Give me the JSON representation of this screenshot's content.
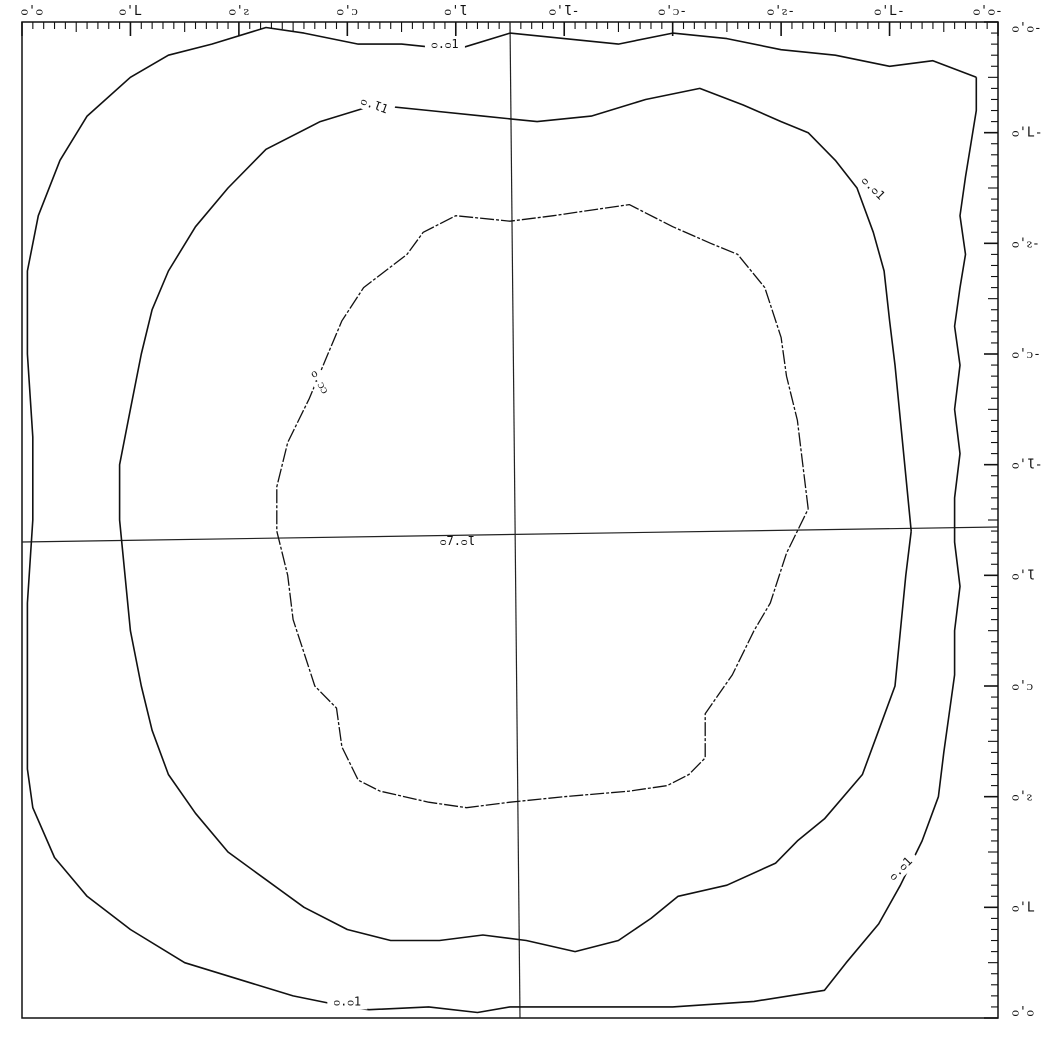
{
  "chart_data": {
    "type": "contour",
    "orientation": "rotated 180 degrees (printed upside-down)",
    "x_axis": {
      "position": "top",
      "range": [
        9.0,
        -9.0
      ],
      "tick_labels": [
        "9.0",
        "7.0",
        "5.0",
        "3.0",
        "1.0",
        "-1.0",
        "-3.0",
        "-5.0",
        "-7.0",
        "-9.0"
      ]
    },
    "y_axis": {
      "position": "right",
      "range": [
        -9.0,
        9.0
      ],
      "tick_labels": [
        "-9.0",
        "-7.0",
        "-5.0",
        "-3.0",
        "-1.0",
        "1.0",
        "3.0",
        "5.0",
        "7.0",
        "9.0"
      ]
    },
    "crosshair": {
      "x": 0.0,
      "y": 0.0
    },
    "center_label": "18.70",
    "contours": [
      {
        "level": 16.0,
        "labels": [
          "16.0",
          "16.0",
          "16.0",
          "16.0"
        ],
        "points": [
          [
            -8.6,
            -8.0
          ],
          [
            -8.6,
            -7.4
          ],
          [
            -8.5,
            -6.8
          ],
          [
            -8.4,
            -6.2
          ],
          [
            -8.3,
            -5.5
          ],
          [
            -8.4,
            -4.8
          ],
          [
            -8.3,
            -4.2
          ],
          [
            -8.2,
            -3.5
          ],
          [
            -8.3,
            -2.8
          ],
          [
            -8.2,
            -2.0
          ],
          [
            -8.3,
            -1.2
          ],
          [
            -8.2,
            -0.4
          ],
          [
            -8.2,
            0.4
          ],
          [
            -8.3,
            1.2
          ],
          [
            -8.2,
            2.0
          ],
          [
            -8.2,
            2.8
          ],
          [
            -8.1,
            3.5
          ],
          [
            -8.0,
            4.2
          ],
          [
            -7.9,
            5.0
          ],
          [
            -7.6,
            5.8
          ],
          [
            -7.2,
            6.6
          ],
          [
            -6.8,
            7.3
          ],
          [
            -6.2,
            8.0
          ],
          [
            -5.8,
            8.5
          ],
          [
            -4.5,
            8.7
          ],
          [
            -3.0,
            8.8
          ],
          [
            -1.5,
            8.8
          ],
          [
            0.0,
            8.8
          ],
          [
            0.6,
            8.9
          ],
          [
            1.5,
            8.8
          ],
          [
            2.6,
            8.85
          ],
          [
            3.0,
            8.8
          ],
          [
            4.0,
            8.6
          ],
          [
            5.0,
            8.3
          ],
          [
            6.0,
            8.0
          ],
          [
            7.0,
            7.4
          ],
          [
            7.8,
            6.8
          ],
          [
            8.4,
            6.1
          ],
          [
            8.8,
            5.2
          ],
          [
            8.9,
            4.5
          ],
          [
            8.9,
            3.0
          ],
          [
            8.9,
            1.5
          ],
          [
            8.8,
            0.0
          ],
          [
            8.8,
            -1.5
          ],
          [
            8.9,
            -3.0
          ],
          [
            8.9,
            -4.5
          ],
          [
            8.7,
            -5.5
          ],
          [
            8.3,
            -6.5
          ],
          [
            7.8,
            -7.3
          ],
          [
            7.0,
            -8.0
          ],
          [
            6.3,
            -8.4
          ],
          [
            5.5,
            -8.6
          ],
          [
            4.5,
            -8.9
          ],
          [
            3.8,
            -8.8
          ],
          [
            2.8,
            -8.6
          ],
          [
            2.0,
            -8.6
          ],
          [
            1.0,
            -8.5
          ],
          [
            0.0,
            -8.8
          ],
          [
            -1.0,
            -8.7
          ],
          [
            -2.0,
            -8.6
          ],
          [
            -3.0,
            -8.8
          ],
          [
            -4.0,
            -8.7
          ],
          [
            -5.0,
            -8.5
          ],
          [
            -6.0,
            -8.4
          ],
          [
            -7.0,
            -8.2
          ],
          [
            -7.8,
            -8.3
          ],
          [
            -8.6,
            -8.0
          ]
        ]
      },
      {
        "level": 17.0,
        "labels": [
          "17.0"
        ],
        "points": [
          [
            -7.4,
            0.2
          ],
          [
            -7.3,
            -0.8
          ],
          [
            -7.2,
            -1.8
          ],
          [
            -7.1,
            -2.8
          ],
          [
            -7.0,
            -3.6
          ],
          [
            -6.9,
            -4.5
          ],
          [
            -6.7,
            -5.2
          ],
          [
            -6.4,
            -6.0
          ],
          [
            -6.0,
            -6.5
          ],
          [
            -5.5,
            -7.0
          ],
          [
            -5.0,
            -7.2
          ],
          [
            -4.3,
            -7.5
          ],
          [
            -3.5,
            -7.8
          ],
          [
            -2.5,
            -7.6
          ],
          [
            -1.5,
            -7.3
          ],
          [
            -0.5,
            -7.2
          ],
          [
            0.5,
            -7.3
          ],
          [
            1.5,
            -7.4
          ],
          [
            2.5,
            -7.5
          ],
          [
            3.5,
            -7.2
          ],
          [
            4.5,
            -6.7
          ],
          [
            5.2,
            -6.0
          ],
          [
            5.8,
            -5.3
          ],
          [
            6.3,
            -4.5
          ],
          [
            6.6,
            -3.8
          ],
          [
            6.8,
            -3.0
          ],
          [
            7.0,
            -2.0
          ],
          [
            7.2,
            -1.0
          ],
          [
            7.2,
            0.0
          ],
          [
            7.1,
            1.0
          ],
          [
            7.0,
            2.0
          ],
          [
            6.8,
            3.0
          ],
          [
            6.6,
            3.8
          ],
          [
            6.3,
            4.6
          ],
          [
            5.8,
            5.3
          ],
          [
            5.2,
            6.0
          ],
          [
            4.5,
            6.5
          ],
          [
            3.8,
            7.0
          ],
          [
            3.0,
            7.4
          ],
          [
            2.2,
            7.6
          ],
          [
            1.3,
            7.6
          ],
          [
            0.5,
            7.5
          ],
          [
            -0.3,
            7.6
          ],
          [
            -1.2,
            7.8
          ],
          [
            -2.0,
            7.6
          ],
          [
            -2.6,
            7.2
          ],
          [
            -3.1,
            6.8
          ],
          [
            -4.0,
            6.6
          ],
          [
            -4.9,
            6.2
          ],
          [
            -5.3,
            5.8
          ],
          [
            -5.8,
            5.4
          ],
          [
            -6.5,
            4.6
          ],
          [
            -6.8,
            3.8
          ],
          [
            -7.1,
            3.0
          ],
          [
            -7.2,
            2.0
          ],
          [
            -7.3,
            1.0
          ],
          [
            -7.4,
            0.2
          ]
        ]
      },
      {
        "level": 18.0,
        "labels": [
          "18.0"
        ],
        "points": [
          [
            -5.5,
            -0.2
          ],
          [
            -5.4,
            -1.0
          ],
          [
            -5.3,
            -1.8
          ],
          [
            -5.1,
            -2.6
          ],
          [
            -5.0,
            -3.3
          ],
          [
            -4.7,
            -4.2
          ],
          [
            -4.2,
            -4.8
          ],
          [
            -3.7,
            -5.0
          ],
          [
            -3.0,
            -5.3
          ],
          [
            -2.2,
            -5.7
          ],
          [
            -1.5,
            -5.6
          ],
          [
            -0.8,
            -5.5
          ],
          [
            0.0,
            -5.4
          ],
          [
            1.0,
            -5.5
          ],
          [
            1.6,
            -5.2
          ],
          [
            1.9,
            -4.8
          ],
          [
            2.3,
            -4.5
          ],
          [
            2.7,
            -4.2
          ],
          [
            3.1,
            -3.6
          ],
          [
            3.4,
            -2.9
          ],
          [
            3.7,
            -2.2
          ],
          [
            4.1,
            -1.4
          ],
          [
            4.3,
            -0.6
          ],
          [
            4.3,
            0.2
          ],
          [
            4.1,
            1.0
          ],
          [
            4.0,
            1.8
          ],
          [
            3.8,
            2.4
          ],
          [
            3.6,
            3.0
          ],
          [
            3.2,
            3.4
          ],
          [
            3.1,
            4.1
          ],
          [
            2.8,
            4.7
          ],
          [
            2.4,
            4.9
          ],
          [
            1.5,
            5.1
          ],
          [
            0.8,
            5.2
          ],
          [
            0.0,
            5.1
          ],
          [
            -1.0,
            5.0
          ],
          [
            -2.2,
            4.9
          ],
          [
            -2.9,
            4.8
          ],
          [
            -3.3,
            4.6
          ],
          [
            -3.6,
            4.3
          ],
          [
            -3.6,
            3.5
          ],
          [
            -4.1,
            2.8
          ],
          [
            -4.5,
            2.0
          ],
          [
            -4.8,
            1.5
          ],
          [
            -5.1,
            0.6
          ],
          [
            -5.5,
            -0.2
          ]
        ]
      }
    ]
  },
  "labels": {
    "x_ticks": [
      "ᴑ'ᴑ",
      "ᴑ'L",
      "ᴑ'ᴤ",
      "ᴑ'ᴐ",
      "ᴑ'Ɩ",
      "ᴑ'Ɩ-",
      "ᴑ'ᴐ-",
      "ᴑ'ᴤ-",
      "ᴑ'L-",
      "ᴑ'ᴑ-"
    ],
    "y_ticks": [
      "ᴑ'ᴑ-",
      "ᴑ'L-",
      "ᴑ'ᴤ-",
      "ᴑ'ᴐ-",
      "ᴑ'Ɩ-",
      "ᴑ'Ɩ",
      "ᴑ'ᴐ",
      "ᴑ'ᴤ",
      "ᴑ'L",
      "ᴑ'ᴑ"
    ],
    "center": "ᴑ7.ᴑƖ",
    "c16": "ᴑ.ᴑ1",
    "c17": "ᴑ.Ɩ1",
    "c18": "ᴑ.ᴐᴐ"
  },
  "colors": {
    "background": "#ffffff",
    "ink": "#111111",
    "grid": "#222222"
  }
}
